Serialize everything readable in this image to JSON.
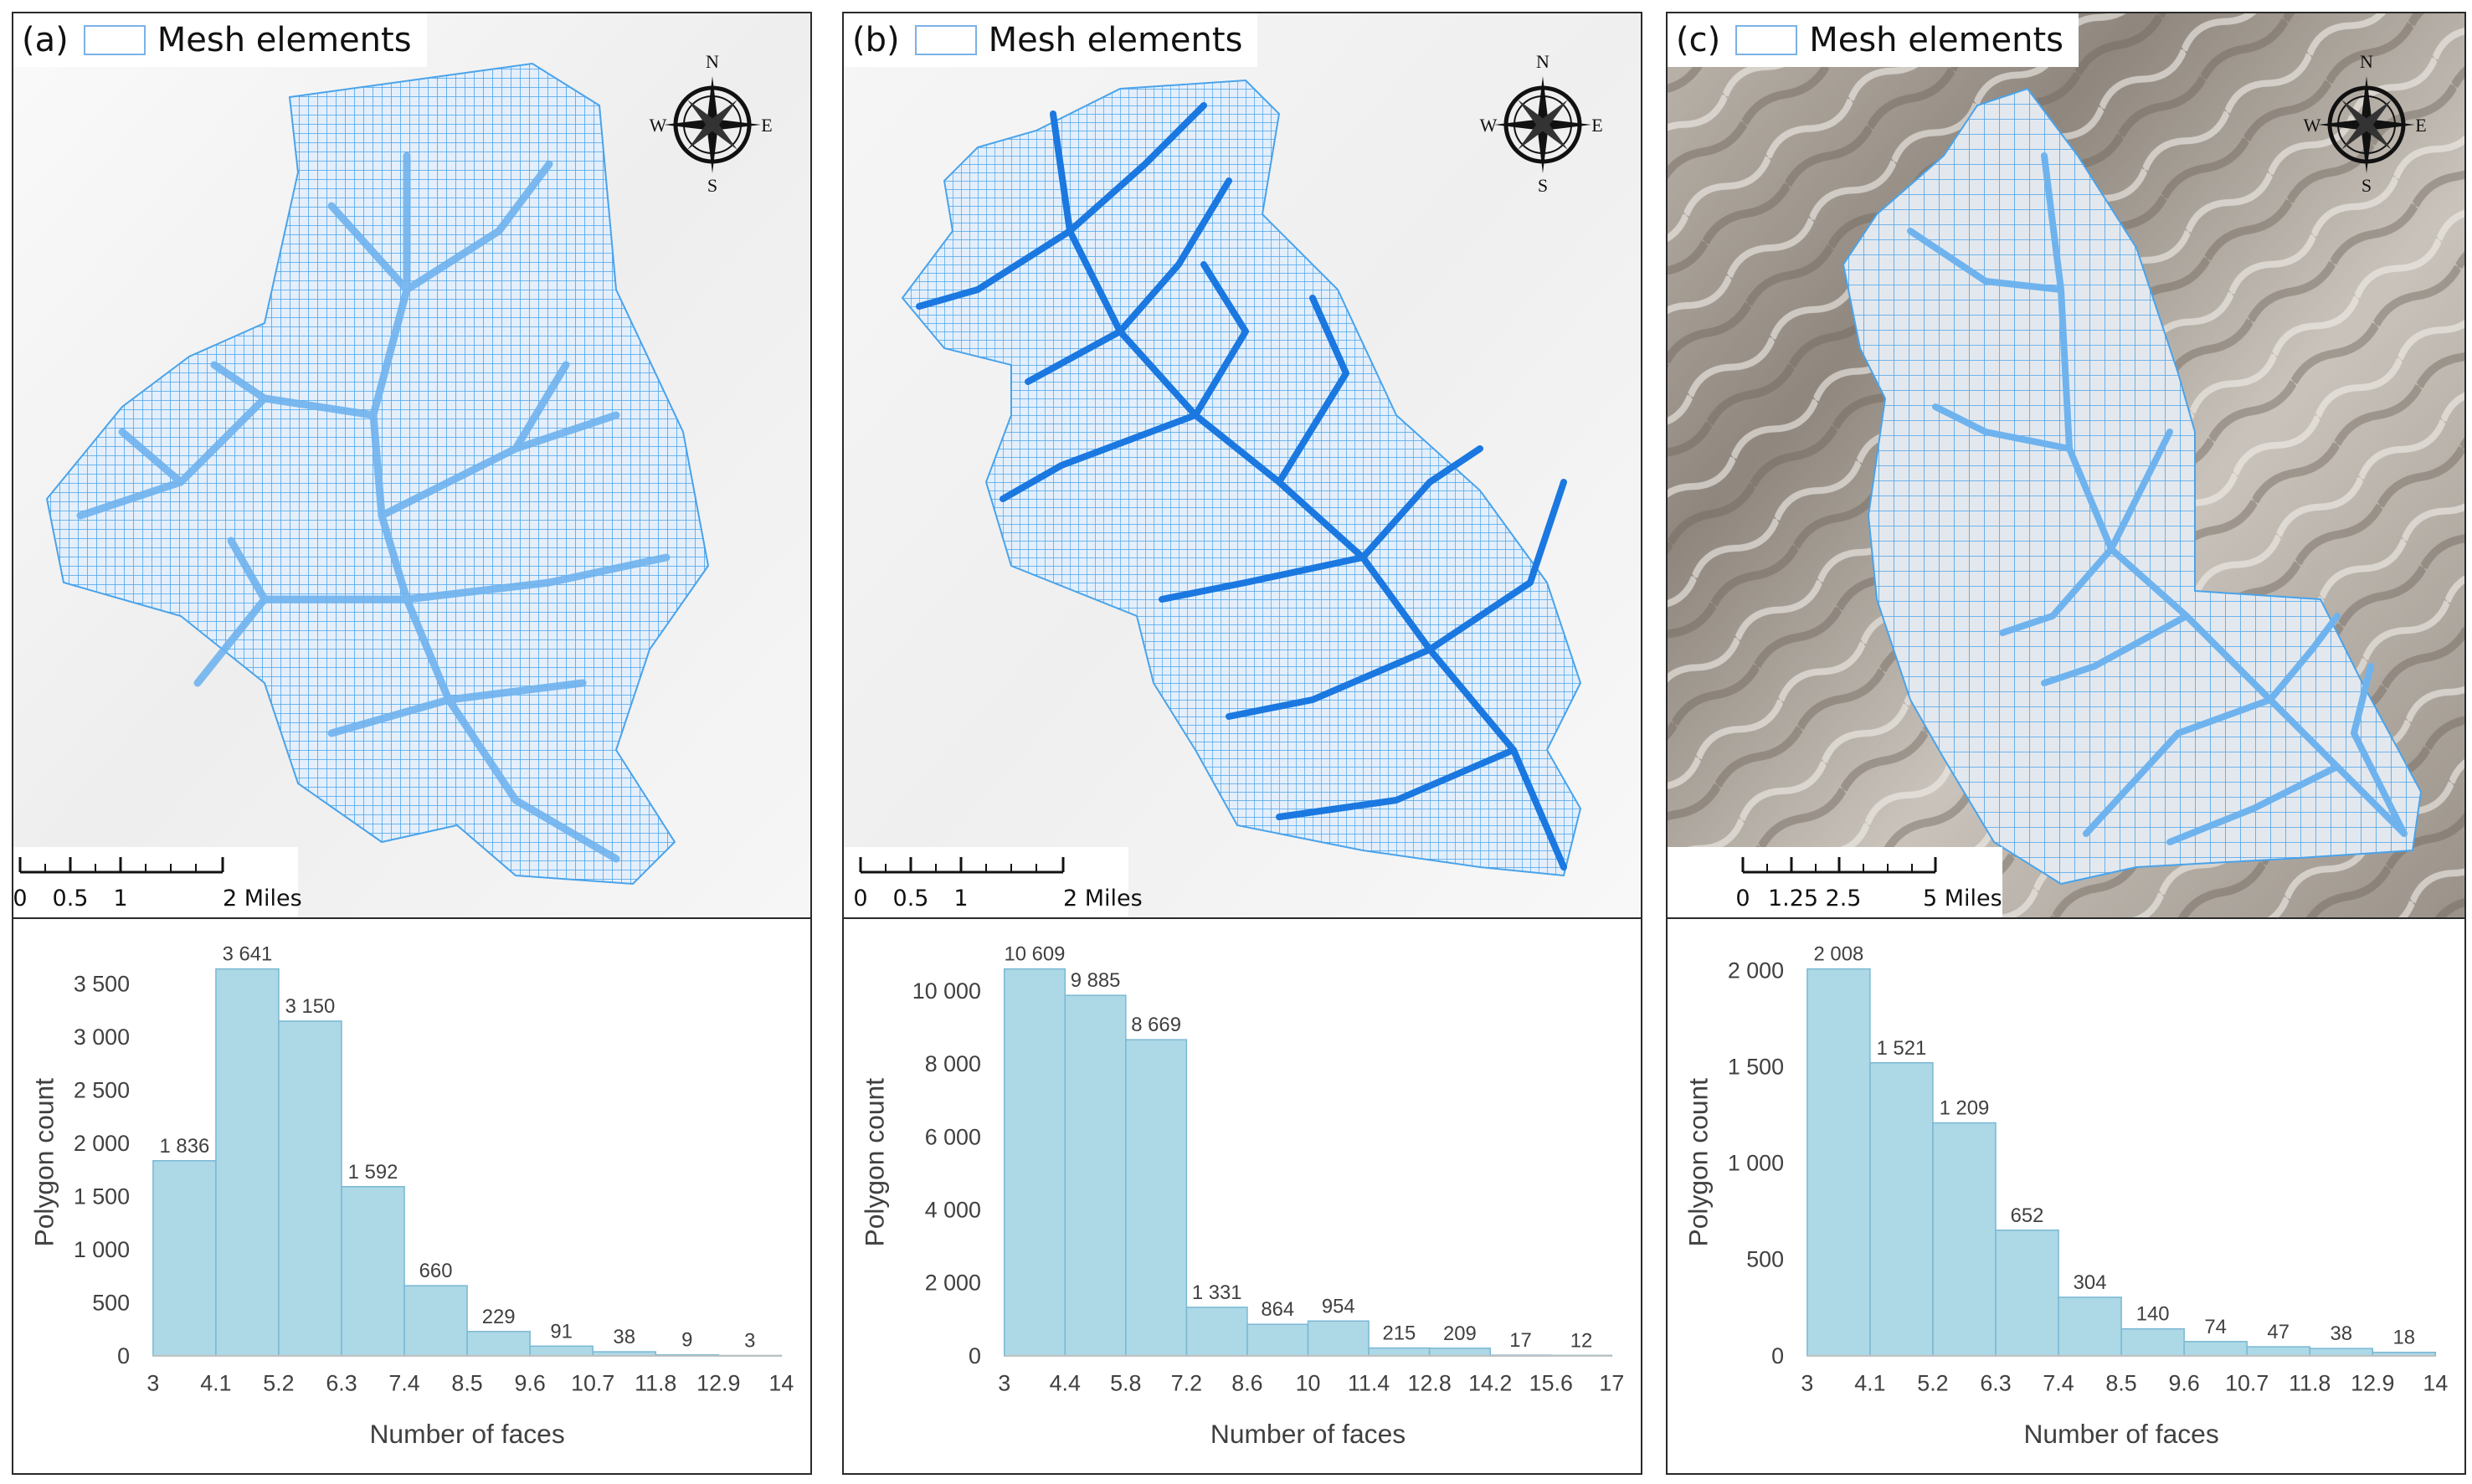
{
  "panels": [
    {
      "label": "(a)",
      "legend_label": "Mesh elements",
      "compass": {
        "n": "N",
        "s": "S",
        "e": "E",
        "w": "W"
      },
      "scale": {
        "labels": [
          "0",
          "0.5",
          "1",
          "2 Miles"
        ],
        "values": [
          0,
          0.5,
          1,
          2
        ]
      },
      "map_style": "light",
      "icons": [
        "compass-rose-icon"
      ]
    },
    {
      "label": "(b)",
      "legend_label": "Mesh elements",
      "compass": {
        "n": "N",
        "s": "S",
        "e": "E",
        "w": "W"
      },
      "scale": {
        "labels": [
          "0",
          "0.5",
          "1",
          "2 Miles"
        ],
        "values": [
          0,
          0.5,
          1,
          2
        ]
      },
      "map_style": "light",
      "icons": [
        "compass-rose-icon"
      ]
    },
    {
      "label": "(c)",
      "legend_label": "Mesh elements",
      "compass": {
        "n": "N",
        "s": "S",
        "e": "E",
        "w": "W"
      },
      "scale": {
        "labels": [
          "0",
          "1.25",
          "2.5",
          "5 Miles"
        ],
        "values": [
          0,
          1.25,
          2.5,
          5
        ]
      },
      "map_style": "dark",
      "icons": [
        "compass-rose-icon"
      ]
    }
  ],
  "colors": {
    "bar_fill": "#add8e6",
    "bar_edge": "#7ab8d4",
    "mesh_line": "#4aa3ea",
    "mesh_fill": "#dcecfb",
    "river": "#1a78e0",
    "axis_text": "#404040",
    "panel_border": "#2a2a2a"
  },
  "chart_data": [
    {
      "type": "bar",
      "xlabel": "Number of faces",
      "ylabel": "Polygon count",
      "x_ticks": [
        "3",
        "4.1",
        "5.2",
        "6.3",
        "7.4",
        "8.5",
        "9.6",
        "10.7",
        "11.8",
        "12.9",
        "14"
      ],
      "bins": [
        [
          3,
          4.1
        ],
        [
          4.1,
          5.2
        ],
        [
          5.2,
          6.3
        ],
        [
          6.3,
          7.4
        ],
        [
          7.4,
          8.5
        ],
        [
          8.5,
          9.6
        ],
        [
          9.6,
          10.7
        ],
        [
          10.7,
          11.8
        ],
        [
          11.8,
          12.9
        ],
        [
          12.9,
          14
        ]
      ],
      "values": [
        1836,
        3641,
        3150,
        1592,
        660,
        229,
        91,
        38,
        9,
        3
      ],
      "value_labels": [
        "1 836",
        "3 641",
        "3 150",
        "1 592",
        "660",
        "229",
        "91",
        "38",
        "9",
        "3"
      ],
      "y_ticks": [
        0,
        500,
        1000,
        1500,
        2000,
        2500,
        3000,
        3500
      ],
      "y_tick_labels": [
        "0",
        "500",
        "1 000",
        "1 500",
        "2 000",
        "2 500",
        "3 000",
        "3 500"
      ],
      "ylim": [
        0,
        3641
      ],
      "grid": false
    },
    {
      "type": "bar",
      "xlabel": "Number of faces",
      "ylabel": "Polygon count",
      "x_ticks": [
        "3",
        "4.4",
        "5.8",
        "7.2",
        "8.6",
        "10",
        "11.4",
        "12.8",
        "14.2",
        "15.6",
        "17"
      ],
      "bins": [
        [
          3,
          4.4
        ],
        [
          4.4,
          5.8
        ],
        [
          5.8,
          7.2
        ],
        [
          7.2,
          8.6
        ],
        [
          8.6,
          10
        ],
        [
          10,
          11.4
        ],
        [
          11.4,
          12.8
        ],
        [
          12.8,
          14.2
        ],
        [
          14.2,
          15.6
        ],
        [
          15.6,
          17
        ]
      ],
      "values": [
        10609,
        9885,
        8669,
        1331,
        864,
        954,
        215,
        209,
        17,
        12
      ],
      "value_labels": [
        "10 609",
        "9 885",
        "8 669",
        "1 331",
        "864",
        "954",
        "215",
        "209",
        "17",
        "12"
      ],
      "y_ticks": [
        0,
        2000,
        4000,
        6000,
        8000,
        10000
      ],
      "y_tick_labels": [
        "0",
        "2 000",
        "4 000",
        "6 000",
        "8 000",
        "10 000"
      ],
      "ylim": [
        0,
        10609
      ],
      "grid": false
    },
    {
      "type": "bar",
      "xlabel": "Number of faces",
      "ylabel": "Polygon count",
      "x_ticks": [
        "3",
        "4.1",
        "5.2",
        "6.3",
        "7.4",
        "8.5",
        "9.6",
        "10.7",
        "11.8",
        "12.9",
        "14"
      ],
      "bins": [
        [
          3,
          4.1
        ],
        [
          4.1,
          5.2
        ],
        [
          5.2,
          6.3
        ],
        [
          6.3,
          7.4
        ],
        [
          7.4,
          8.5
        ],
        [
          8.5,
          9.6
        ],
        [
          9.6,
          10.7
        ],
        [
          10.7,
          11.8
        ],
        [
          11.8,
          12.9
        ],
        [
          12.9,
          14
        ]
      ],
      "values": [
        2008,
        1521,
        1209,
        652,
        304,
        140,
        74,
        47,
        38,
        18
      ],
      "value_labels": [
        "2 008",
        "1 521",
        "1 209",
        "652",
        "304",
        "140",
        "74",
        "47",
        "38",
        "18"
      ],
      "y_ticks": [
        0,
        500,
        1000,
        1500,
        2000
      ],
      "y_tick_labels": [
        "0",
        "500",
        "1 000",
        "1 500",
        "2 000"
      ],
      "ylim": [
        0,
        2008
      ],
      "grid": false
    }
  ]
}
